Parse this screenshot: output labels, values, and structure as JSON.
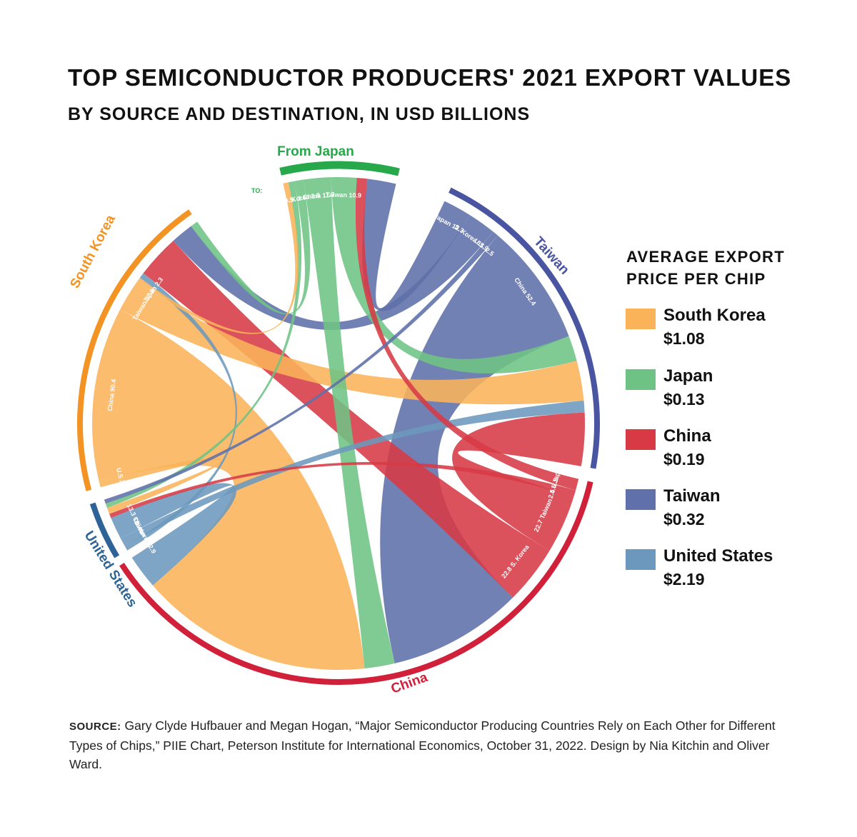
{
  "title": "TOP SEMICONDUCTOR PRODUCERS' 2021 EXPORT VALUES",
  "subtitle": "BY SOURCE AND DESTINATION, IN USD BILLIONS",
  "legend": {
    "title_line1": "AVERAGE EXPORT",
    "title_line2": "PRICE PER CHIP",
    "items": [
      {
        "name": "South Korea",
        "value": "$1.08",
        "color": "#FBB35A"
      },
      {
        "name": "Japan",
        "value": "$0.13",
        "color": "#6EC384"
      },
      {
        "name": "China",
        "value": "$0.19",
        "color": "#D73A45"
      },
      {
        "name": "Taiwan",
        "value": "$0.32",
        "color": "#5F70AA"
      },
      {
        "name": "United States",
        "value": "$2.19",
        "color": "#6C98BD"
      }
    ]
  },
  "chart_data": {
    "type": "chord",
    "title": "TOP SEMICONDUCTOR PRODUCERS' 2021 EXPORT VALUES",
    "subtitle": "BY SOURCE AND DESTINATION, IN USD BILLIONS",
    "segments": [
      {
        "id": "japan",
        "label": "From Japan",
        "color": "#27A84A"
      },
      {
        "id": "taiwan",
        "label": "Taiwan",
        "color": "#4A55A2"
      },
      {
        "id": "china",
        "label": "China",
        "color": "#D0203A"
      },
      {
        "id": "us",
        "label": "United States",
        "color": "#2D6397"
      },
      {
        "id": "korea",
        "label": "South Korea",
        "color": "#F39323"
      }
    ],
    "to_prefix": "TO:",
    "flows": [
      {
        "from": "japan",
        "to": "us",
        "value": 2.6,
        "label": "U.S. 2.6"
      },
      {
        "from": "japan",
        "to": "korea",
        "value": 3.9,
        "label": "S. Korea 3.9"
      },
      {
        "from": "japan",
        "to": "china",
        "value": 11.7,
        "label": "China 11.7"
      },
      {
        "from": "japan",
        "to": "taiwan",
        "value": 10.9,
        "label": "Taiwan 10.9"
      },
      {
        "from": "taiwan",
        "to": "japan",
        "value": 12.3,
        "label": "Japan 12.3"
      },
      {
        "from": "taiwan",
        "to": "korea",
        "value": 11.9,
        "label": "S. Korea 11.9"
      },
      {
        "from": "taiwan",
        "to": "us",
        "value": 2.5,
        "label": "U.S. 2.5"
      },
      {
        "from": "taiwan",
        "to": "china",
        "value": 52.4,
        "label": "China 52.4"
      },
      {
        "from": "china",
        "to": "japan",
        "value": 4.5,
        "label": "4.5 Japan"
      },
      {
        "from": "china",
        "to": "us",
        "value": 2.5,
        "label": "2.5 U.S."
      },
      {
        "from": "china",
        "to": "taiwan",
        "value": 22.7,
        "label": "22.7 Taiwan"
      },
      {
        "from": "china",
        "to": "korea",
        "value": 22.8,
        "label": "22.8 S. Korea"
      },
      {
        "from": "us",
        "to": "korea",
        "value": 2.9,
        "label": "S. Korea 2.9"
      },
      {
        "from": "us",
        "to": "taiwan",
        "value": 5.1,
        "label": "Taiwan 5.1"
      },
      {
        "from": "us",
        "to": "china",
        "value": 13.3,
        "label": "13.3 China"
      },
      {
        "from": "korea",
        "to": "japan",
        "value": 2.3,
        "label": "Japan 2.3"
      },
      {
        "from": "korea",
        "to": "taiwan",
        "value": 17.0,
        "label": "Taiwan 17.0"
      },
      {
        "from": "korea",
        "to": "china",
        "value": 90.4,
        "label": "China 90.4"
      },
      {
        "from": "korea",
        "to": "us",
        "value": 3.8,
        "label": "U.S 3.8"
      }
    ]
  },
  "source": {
    "label": "Source:",
    "text": "Gary Clyde Hufbauer and Megan Hogan, “Major Semiconductor Producing Countries Rely on Each Other for Different Types of Chips,” PIIE Chart, Peterson Institute for International Economics, October 31, 2022. Design by Nia Kitchin and Oliver Ward."
  }
}
